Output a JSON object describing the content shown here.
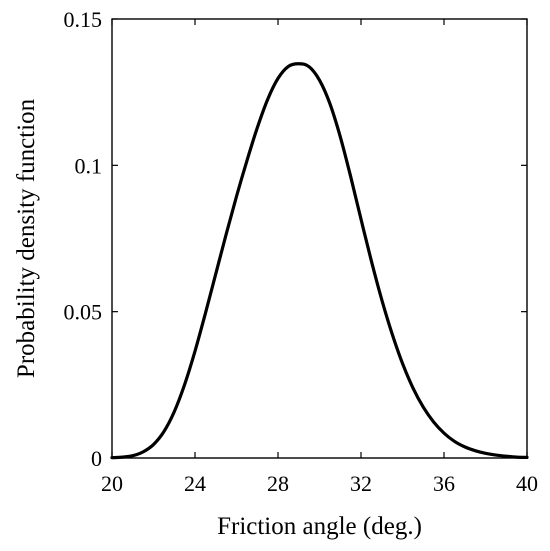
{
  "chart_data": {
    "type": "line",
    "title": "",
    "xlabel": "Friction angle (deg.)",
    "ylabel": "Probability density function",
    "xlim": [
      20,
      40
    ],
    "ylim": [
      0,
      0.15
    ],
    "xticks": [
      20,
      24,
      28,
      32,
      36,
      40
    ],
    "xtick_labels": [
      "20",
      "24",
      "28",
      "32",
      "36",
      "40"
    ],
    "yticks": [
      0,
      0.05,
      0.1,
      0.15
    ],
    "ytick_labels": [
      "0",
      "0.05",
      "0.1",
      "0.15"
    ],
    "grid": false,
    "legend": "none",
    "series": [
      {
        "color": "#000000",
        "x": [
          20,
          20.5,
          21,
          21.5,
          22,
          22.5,
          23,
          23.5,
          24,
          24.5,
          25,
          25.5,
          26,
          26.5,
          27,
          27.5,
          28,
          28.5,
          29,
          29.5,
          30,
          30.5,
          31,
          31.5,
          32,
          32.5,
          33,
          33.5,
          34,
          34.5,
          35,
          35.5,
          36,
          36.5,
          37,
          37.5,
          38,
          38.5,
          39,
          39.5,
          40
        ],
        "y": [
          0.0001,
          0.0003,
          0.0008,
          0.0021,
          0.0046,
          0.009,
          0.0158,
          0.0251,
          0.0365,
          0.0494,
          0.0629,
          0.0764,
          0.0894,
          0.1015,
          0.1128,
          0.1225,
          0.1297,
          0.1338,
          0.1347,
          0.1337,
          0.1291,
          0.1211,
          0.1098,
          0.0962,
          0.0816,
          0.0673,
          0.0541,
          0.0424,
          0.0323,
          0.024,
          0.0174,
          0.0123,
          0.0085,
          0.0057,
          0.0038,
          0.0025,
          0.0016,
          0.001,
          0.0006,
          0.0003,
          0.0002
        ]
      }
    ]
  }
}
